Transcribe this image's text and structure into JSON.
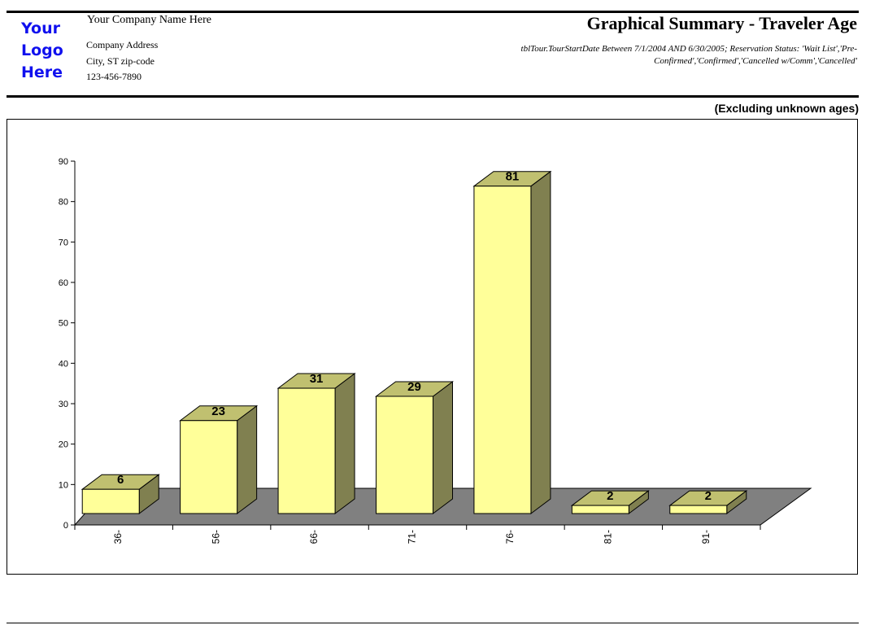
{
  "header": {
    "logo_text": [
      "Your",
      "Logo",
      "Here"
    ],
    "company_name": "Your Company Name Here",
    "address": "Company Address",
    "city": "City, ST  zip-code",
    "phone": "123-456-7890",
    "title": "Graphical Summary - Traveler Age",
    "filter_text": "tblTour.TourStartDate Between 7/1/2004 AND 6/30/2005; Reservation Status: 'Wait List','Pre-Confirmed','Confirmed','Cancelled w/Comm','Cancelled'"
  },
  "note": "(Excluding unknown ages)",
  "colors": {
    "front": "#ffff99",
    "top": "#c0c070",
    "side": "#808050",
    "floor": "#808080",
    "logo": "#1010ee"
  },
  "chart_data": {
    "type": "bar",
    "style": "3d",
    "title": "",
    "xlabel": "",
    "ylabel": "",
    "categories": [
      "36-",
      "56-",
      "66-",
      "71-",
      "76-",
      "81-",
      "91-"
    ],
    "values": [
      6,
      23,
      31,
      29,
      81,
      2,
      2
    ],
    "ylim": [
      0,
      90
    ],
    "yticks": [
      0,
      10,
      20,
      30,
      40,
      50,
      60,
      70,
      80,
      90
    ],
    "grid": false,
    "data_labels": true
  }
}
